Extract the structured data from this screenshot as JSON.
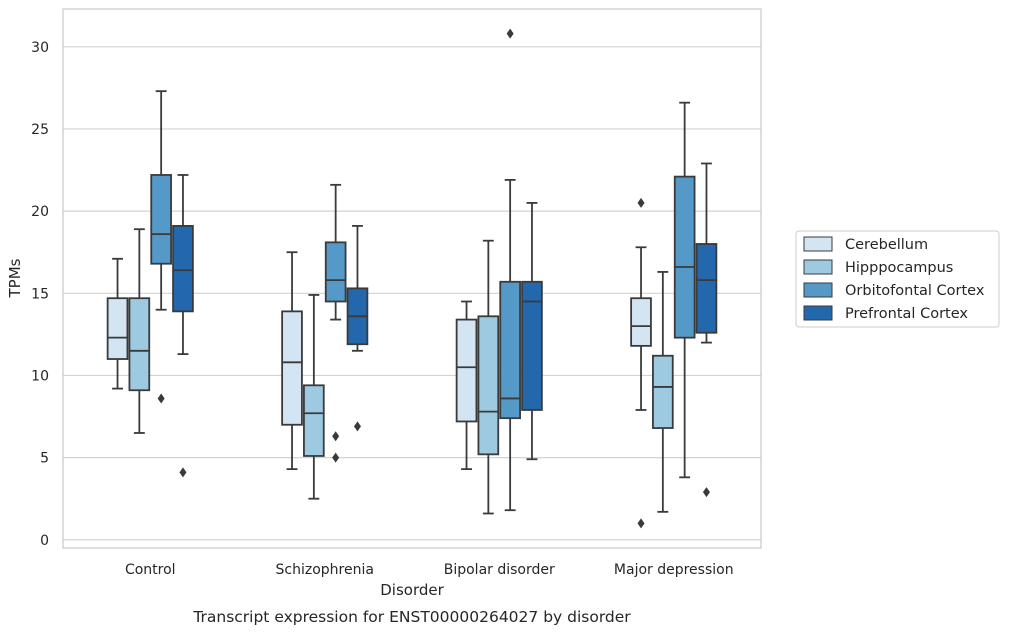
{
  "caption": "Transcript expression for ENST00000264027 by disorder",
  "chart_data": {
    "type": "boxplot",
    "title": "",
    "xlabel": "Disorder",
    "ylabel": "TPMs",
    "ylim": [
      -0.5,
      32.3
    ],
    "yticks": [
      0,
      5,
      10,
      15,
      20,
      25,
      30
    ],
    "grid": "horizontal",
    "legend_position": "right",
    "categories": [
      "Control",
      "Schizophrenia",
      "Bipolar disorder",
      "Major depression"
    ],
    "series": [
      {
        "name": "Cerebellum",
        "color": "#d3e4f3",
        "boxes": [
          {
            "whisker_low": 9.2,
            "q1": 11.0,
            "median": 12.3,
            "q3": 14.7,
            "whisker_high": 17.1,
            "outliers": []
          },
          {
            "whisker_low": 4.3,
            "q1": 7.0,
            "median": 10.8,
            "q3": 13.9,
            "whisker_high": 17.5,
            "outliers": []
          },
          {
            "whisker_low": 4.3,
            "q1": 7.2,
            "median": 10.5,
            "q3": 13.4,
            "whisker_high": 14.5,
            "outliers": []
          },
          {
            "whisker_low": 7.9,
            "q1": 11.8,
            "median": 13.0,
            "q3": 14.7,
            "whisker_high": 17.8,
            "outliers": [
              20.5,
              1.0
            ]
          }
        ]
      },
      {
        "name": "Hipppocampus",
        "color": "#9ecae1",
        "boxes": [
          {
            "whisker_low": 6.5,
            "q1": 9.1,
            "median": 11.5,
            "q3": 14.7,
            "whisker_high": 18.9,
            "outliers": []
          },
          {
            "whisker_low": 2.5,
            "q1": 5.1,
            "median": 7.7,
            "q3": 9.4,
            "whisker_high": 14.9,
            "outliers": []
          },
          {
            "whisker_low": 1.6,
            "q1": 5.2,
            "median": 7.8,
            "q3": 13.6,
            "whisker_high": 18.2,
            "outliers": []
          },
          {
            "whisker_low": 1.7,
            "q1": 6.8,
            "median": 9.3,
            "q3": 11.2,
            "whisker_high": 16.3,
            "outliers": []
          }
        ]
      },
      {
        "name": "Orbitofontal Cortex",
        "color": "#5599c8",
        "boxes": [
          {
            "whisker_low": 14.0,
            "q1": 16.8,
            "median": 18.6,
            "q3": 22.2,
            "whisker_high": 27.3,
            "outliers": [
              8.6
            ]
          },
          {
            "whisker_low": 13.4,
            "q1": 14.5,
            "median": 15.8,
            "q3": 18.1,
            "whisker_high": 21.6,
            "outliers": [
              6.3,
              5.0
            ]
          },
          {
            "whisker_low": 1.8,
            "q1": 7.4,
            "median": 8.6,
            "q3": 15.7,
            "whisker_high": 21.9,
            "outliers": [
              30.8
            ]
          },
          {
            "whisker_low": 3.8,
            "q1": 12.3,
            "median": 16.6,
            "q3": 22.1,
            "whisker_high": 26.6,
            "outliers": []
          }
        ]
      },
      {
        "name": "Prefrontal Cortex",
        "color": "#2368ad",
        "boxes": [
          {
            "whisker_low": 11.3,
            "q1": 13.9,
            "median": 16.4,
            "q3": 19.1,
            "whisker_high": 22.2,
            "outliers": [
              4.1
            ]
          },
          {
            "whisker_low": 11.5,
            "q1": 11.9,
            "median": 13.6,
            "q3": 15.3,
            "whisker_high": 19.1,
            "outliers": [
              6.9
            ]
          },
          {
            "whisker_low": 4.9,
            "q1": 7.9,
            "median": 14.5,
            "q3": 15.7,
            "whisker_high": 20.5,
            "outliers": []
          },
          {
            "whisker_low": 12.0,
            "q1": 12.6,
            "median": 15.8,
            "q3": 18.0,
            "whisker_high": 22.9,
            "outliers": [
              2.9
            ]
          }
        ]
      }
    ]
  }
}
